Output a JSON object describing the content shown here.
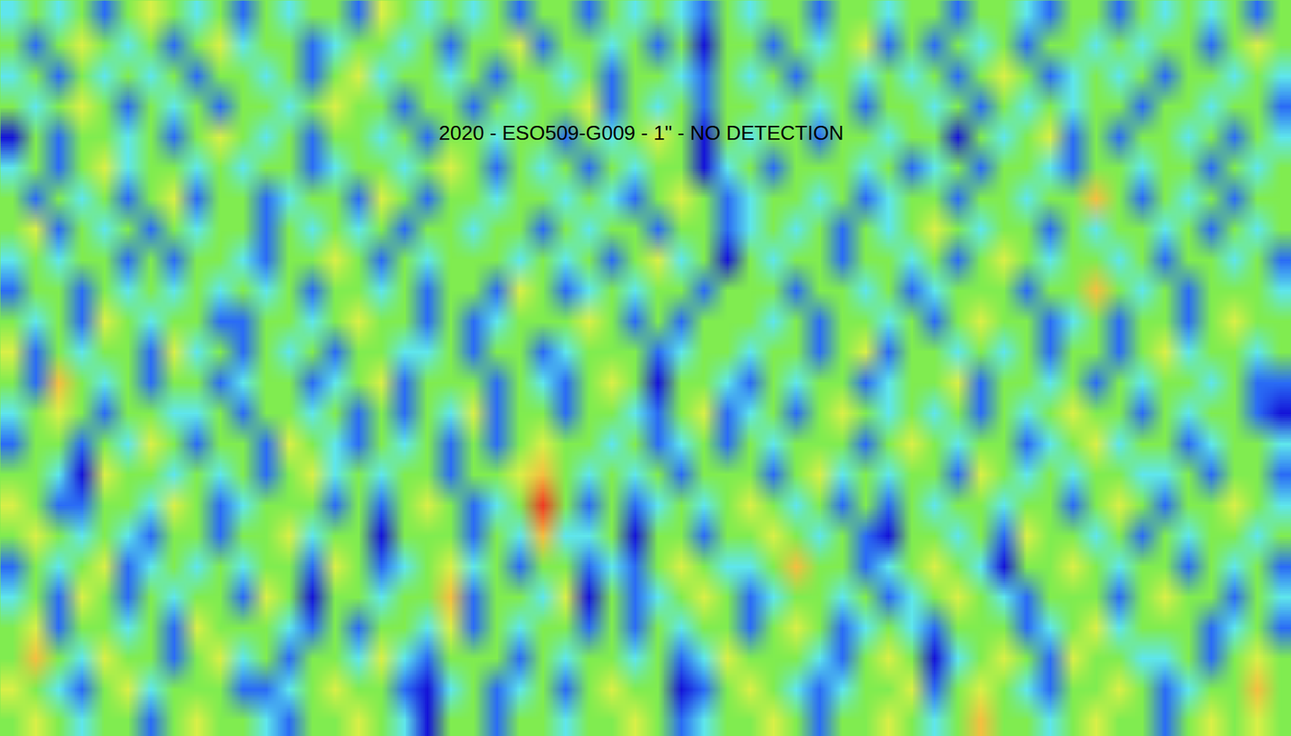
{
  "chart_data": {
    "type": "heatmap",
    "title": "2020 - ESO509-G009 - 1\" - NO DETECTION",
    "tick_labels": false,
    "value_range": [
      -4,
      4
    ],
    "cells": [
      [
        0,
        1,
        0,
        -1,
        0,
        0,
        -2,
        0,
        1,
        0,
        0,
        -1,
        -2,
        0,
        0,
        1,
        0,
        -1,
        -3,
        0,
        0,
        -2,
        0,
        0,
        -1,
        0,
        0,
        1,
        0,
        -2,
        -1,
        0,
        0,
        1,
        0,
        -2,
        0,
        0,
        1,
        0,
        -1,
        0,
        2,
        0,
        0,
        -1,
        0,
        1,
        0,
        0,
        -2,
        0,
        1,
        0,
        1,
        0
      ],
      [
        1,
        0,
        -1,
        -2,
        0,
        1,
        -1,
        0,
        0,
        0,
        -2,
        -2,
        -1,
        0,
        1,
        0,
        0,
        -2,
        -3,
        -1,
        0,
        -2,
        -1,
        0,
        -2,
        0,
        1,
        0,
        0,
        -3,
        -2,
        0,
        1,
        0,
        -1,
        -2,
        -1,
        0,
        0,
        1,
        -2,
        0,
        1,
        0,
        -1,
        -2,
        0,
        0,
        1,
        0,
        -2,
        -1,
        0,
        0,
        2,
        0
      ],
      [
        0,
        2,
        0,
        -1,
        1,
        0,
        0,
        -2,
        0,
        1,
        -1,
        0,
        -2,
        0,
        0,
        -1,
        1,
        -1,
        -2,
        0,
        0,
        0,
        -2,
        0,
        -1,
        0,
        0,
        -1,
        0,
        -2,
        -1,
        1,
        0,
        0,
        0,
        -1,
        -2,
        0,
        1,
        0,
        -3,
        -1,
        0,
        1,
        0,
        -2,
        1,
        0,
        0,
        -1,
        -1,
        0,
        -2,
        0,
        1,
        0
      ],
      [
        0,
        1,
        -2,
        0,
        0,
        -1,
        0,
        -2,
        1,
        0,
        0,
        0,
        -1,
        -2,
        0,
        -2,
        0,
        0,
        -1,
        1,
        -2,
        0,
        -1,
        0,
        0,
        -2,
        0,
        -2,
        0,
        -1,
        0,
        0,
        -2,
        0,
        1,
        0,
        -2,
        -1,
        0,
        -1,
        -2,
        0,
        0,
        0,
        -2,
        -1,
        0,
        1,
        -1,
        0,
        0,
        0,
        -2,
        -1,
        0,
        -2
      ],
      [
        -1,
        0,
        -2,
        1,
        0,
        -2,
        0,
        -1,
        0,
        0,
        -2,
        1,
        0,
        -3,
        0,
        0,
        -1,
        0,
        0,
        2,
        -2,
        0,
        0,
        -1,
        1,
        -3,
        0,
        -2,
        -1,
        0,
        1,
        0,
        -2,
        -1,
        0,
        0,
        -1,
        0,
        -2,
        -1,
        0,
        1,
        0,
        -1,
        -2,
        0,
        0,
        0,
        -2,
        0,
        1,
        0,
        0,
        -2,
        0,
        -1
      ],
      [
        -2,
        0,
        -1,
        0,
        1,
        -2,
        -1,
        0,
        -1,
        0,
        -1,
        0,
        0,
        -2,
        1,
        0,
        -2,
        -1,
        0,
        1,
        -1,
        0,
        -2,
        0,
        0,
        -2,
        -1,
        -2,
        0,
        1,
        0,
        -1,
        -1,
        0,
        2,
        0,
        0,
        -2,
        -1,
        0,
        1,
        0,
        -1,
        -3,
        0,
        0,
        1,
        0,
        -1,
        0,
        0,
        -2,
        0,
        -1,
        0,
        -2
      ],
      [
        0,
        1,
        0,
        -1,
        0,
        -1,
        -2,
        0,
        0,
        -2,
        0,
        0,
        1,
        -1,
        0,
        0,
        -3,
        0,
        0,
        0,
        -2,
        0,
        -1,
        2,
        -1,
        -1,
        0,
        -3,
        0,
        0,
        -2,
        0,
        0,
        1,
        0,
        -1,
        0,
        -2,
        -3,
        0,
        0,
        -1,
        0,
        -2,
        1,
        0,
        0,
        -1,
        0,
        -2,
        0,
        -1,
        0,
        0,
        -1,
        0
      ],
      [
        1,
        0,
        -2,
        -2,
        0,
        0,
        -1,
        1,
        0,
        -2,
        -1,
        0,
        0,
        0,
        -2,
        0,
        -2,
        0,
        1,
        0,
        -2,
        -1,
        0,
        3,
        0,
        -2,
        0,
        -2,
        -1,
        0,
        -1,
        0,
        1,
        0,
        -1,
        0,
        -2,
        0,
        -2,
        0,
        -1,
        0,
        0,
        -1,
        0,
        0,
        -2,
        0,
        1,
        0,
        -2,
        0,
        0,
        1,
        0,
        -1
      ],
      [
        0,
        0,
        -1,
        -3,
        1,
        0,
        0,
        -1,
        0,
        -1,
        0,
        -2,
        0,
        1,
        -1,
        0,
        -1,
        0,
        0,
        -2,
        0,
        0,
        1,
        2,
        0,
        -1,
        0,
        -1,
        0,
        -2,
        0,
        0,
        0,
        -2,
        0,
        1,
        -1,
        0,
        -1,
        0,
        0,
        -2,
        1,
        0,
        -1,
        0,
        -1,
        0,
        0,
        -1,
        -1,
        0,
        -2,
        0,
        0,
        -2
      ],
      [
        -2,
        0,
        0,
        -2,
        0,
        -1,
        1,
        0,
        -2,
        0,
        0,
        -2,
        1,
        0,
        -1,
        -2,
        0,
        -1,
        0,
        -2,
        0,
        -2,
        0,
        1,
        0,
        0,
        -1,
        0,
        -2,
        -1,
        0,
        -2,
        0,
        -1,
        0,
        0,
        0,
        -2,
        0,
        1,
        0,
        -1,
        0,
        0,
        -2,
        -1,
        0,
        1,
        -1,
        0,
        0,
        -2,
        -1,
        0,
        0,
        -1
      ],
      [
        -1,
        0,
        1,
        0,
        -2,
        0,
        0,
        -1,
        -1,
        0,
        -2,
        0,
        0,
        -1,
        0,
        -2,
        0,
        -2,
        0,
        -1,
        1,
        -2,
        0,
        0,
        -2,
        0,
        0,
        -1,
        -2,
        0,
        1,
        -2,
        -1,
        0,
        -2,
        0,
        1,
        0,
        -1,
        0,
        -1,
        0,
        -2,
        0,
        -1,
        0,
        1,
        0,
        0,
        -2,
        0,
        -1,
        0,
        0,
        -2,
        -3
      ],
      [
        0,
        -2,
        2,
        0,
        -1,
        0,
        -2,
        0,
        0,
        -2,
        -1,
        0,
        0,
        -2,
        -1,
        0,
        1,
        -2,
        0,
        0,
        0,
        -2,
        0,
        -1,
        -2,
        0,
        1,
        0,
        -3,
        0,
        0,
        -1,
        -2,
        0,
        -1,
        0,
        0,
        -2,
        -1,
        0,
        0,
        1,
        -2,
        0,
        0,
        -1,
        0,
        -2,
        0,
        -1,
        0,
        0,
        -1,
        0,
        -2,
        -2
      ],
      [
        1,
        -2,
        0,
        -1,
        0,
        0,
        -2,
        1,
        -1,
        0,
        -2,
        0,
        -1,
        0,
        -2,
        0,
        0,
        -1,
        -1,
        0,
        -2,
        0,
        0,
        -2,
        -1,
        0,
        0,
        0,
        -2,
        -1,
        0,
        0,
        -1,
        0,
        0,
        -2,
        0,
        1,
        -2,
        0,
        0,
        -1,
        0,
        -1,
        0,
        -2,
        0,
        0,
        -2,
        0,
        1,
        -1,
        0,
        0,
        -1,
        0
      ],
      [
        0,
        -1,
        0,
        -2,
        1,
        0,
        -1,
        0,
        0,
        -2,
        -2,
        0,
        0,
        -1,
        0,
        1,
        0,
        0,
        -2,
        0,
        -2,
        -1,
        0,
        0,
        0,
        1,
        0,
        -2,
        0,
        -2,
        0,
        0,
        0,
        -1,
        0,
        -2,
        0,
        0,
        -1,
        0,
        -2,
        0,
        1,
        0,
        0,
        -2,
        -1,
        0,
        -2,
        0,
        0,
        -2,
        0,
        1,
        0,
        0
      ],
      [
        -2,
        0,
        0,
        -2,
        0,
        -1,
        0,
        -1,
        0,
        -1,
        0,
        -1,
        0,
        -2,
        0,
        0,
        -1,
        0,
        -2,
        0,
        0,
        -2,
        1,
        0,
        -2,
        -1,
        0,
        -1,
        0,
        0,
        -2,
        0,
        0,
        0,
        -2,
        0,
        0,
        -1,
        0,
        -2,
        -1,
        0,
        0,
        0,
        -2,
        0,
        0,
        2,
        0,
        -1,
        0,
        -2,
        0,
        0,
        0,
        -1
      ],
      [
        -1,
        0,
        -1,
        0,
        0,
        -2,
        0,
        -2,
        0,
        0,
        -1,
        -2,
        0,
        0,
        1,
        0,
        -2,
        0,
        -1,
        0,
        0,
        0,
        -1,
        0,
        -1,
        0,
        -2,
        0,
        1,
        -1,
        0,
        -3,
        0,
        -1,
        0,
        0,
        -2,
        0,
        0,
        -1,
        0,
        -2,
        0,
        1,
        0,
        -1,
        0,
        0,
        -1,
        0,
        -2,
        0,
        0,
        -1,
        0,
        -2
      ],
      [
        0,
        1,
        -2,
        0,
        -1,
        0,
        -2,
        0,
        -1,
        0,
        0,
        -2,
        0,
        -1,
        0,
        -1,
        0,
        -2,
        0,
        0,
        -1,
        0,
        0,
        -2,
        0,
        -1,
        0,
        0,
        -2,
        0,
        0,
        -2,
        -1,
        0,
        -1,
        0,
        -2,
        0,
        -1,
        0,
        1,
        0,
        -1,
        0,
        0,
        -2,
        0,
        -1,
        0,
        0,
        -1,
        0,
        -2,
        0,
        -1,
        0
      ],
      [
        0,
        -2,
        0,
        -1,
        0,
        -2,
        0,
        1,
        -2,
        0,
        0,
        -2,
        -1,
        0,
        0,
        -2,
        1,
        0,
        -2,
        0,
        0,
        -1,
        0,
        0,
        -1,
        0,
        -1,
        -2,
        0,
        1,
        0,
        -2,
        -1,
        0,
        0,
        -1,
        0,
        -2,
        -1,
        0,
        0,
        -2,
        0,
        0,
        -1,
        0,
        0,
        2,
        0,
        -2,
        0,
        -1,
        0,
        -2,
        0,
        0
      ],
      [
        -1,
        0,
        -2,
        0,
        1,
        -1,
        0,
        0,
        -1,
        0,
        -1,
        0,
        0,
        -2,
        -1,
        0,
        0,
        -1,
        0,
        1,
        0,
        -2,
        0,
        -1,
        0,
        -2,
        0,
        -1,
        0,
        0,
        -3,
        -1,
        0,
        -2,
        0,
        0,
        0,
        -1,
        0,
        -2,
        -1,
        0,
        -2,
        0,
        0,
        -1,
        -2,
        0,
        0,
        -1,
        0,
        0,
        -2,
        0,
        -1,
        0
      ],
      [
        -3,
        0,
        -2,
        0,
        0,
        -1,
        0,
        -2,
        0,
        1,
        0,
        -1,
        0,
        -2,
        0,
        0,
        -1,
        0,
        -2,
        0,
        0,
        -1,
        0,
        0,
        -2,
        0,
        -1,
        0,
        1,
        0,
        -3,
        0,
        -1,
        0,
        0,
        -2,
        0,
        0,
        -1,
        0,
        0,
        -3,
        0,
        -1,
        0,
        1,
        -2,
        0,
        -2,
        0,
        0,
        -1,
        0,
        -2,
        0,
        -1
      ],
      [
        0,
        -1,
        0,
        1,
        0,
        -2,
        0,
        -1,
        0,
        -2,
        0,
        0,
        -1,
        0,
        1,
        0,
        0,
        -2,
        0,
        0,
        -2,
        0,
        -1,
        0,
        0,
        1,
        -2,
        0,
        -1,
        0,
        -2,
        0,
        0,
        -1,
        0,
        -1,
        0,
        -2,
        0,
        0,
        -1,
        0,
        -2,
        0,
        -1,
        0,
        -1,
        0,
        0,
        -2,
        0,
        0,
        -1,
        0,
        0,
        -2
      ],
      [
        -1,
        0,
        -2,
        0,
        -1,
        0,
        -1,
        0,
        -2,
        0,
        0,
        -1,
        0,
        -2,
        0,
        1,
        -1,
        0,
        0,
        -1,
        0,
        -2,
        0,
        0,
        -1,
        0,
        -2,
        0,
        0,
        -1,
        -2,
        0,
        -1,
        0,
        -2,
        0,
        0,
        -1,
        0,
        -1,
        0,
        -2,
        0,
        1,
        0,
        -2,
        -1,
        0,
        -1,
        0,
        -2,
        0,
        0,
        -1,
        0,
        -1
      ],
      [
        0,
        -2,
        0,
        1,
        0,
        -1,
        0,
        -2,
        0,
        1,
        -1,
        0,
        0,
        -2,
        -1,
        0,
        0,
        -1,
        0,
        -2,
        0,
        0,
        1,
        -2,
        0,
        0,
        -1,
        0,
        -2,
        0,
        -3,
        0,
        0,
        -2,
        0,
        -1,
        0,
        1,
        -2,
        0,
        -2,
        0,
        -1,
        0,
        -2,
        0,
        0,
        -1,
        0,
        -1,
        0,
        0,
        -2,
        0,
        1,
        0
      ],
      [
        -1,
        0,
        -1,
        0,
        -2,
        0,
        1,
        0,
        -1,
        0,
        -2,
        0,
        -1,
        0,
        0,
        -2,
        1,
        0,
        -1,
        0,
        -1,
        0,
        -2,
        0,
        0,
        -2,
        0,
        -1,
        0,
        -1,
        -2,
        0,
        -1,
        0,
        0,
        -2,
        0,
        0,
        -1,
        0,
        0,
        -2,
        0,
        0,
        -1,
        -2,
        0,
        0,
        -2,
        0,
        -1,
        0,
        -1,
        0,
        -2,
        0
      ]
    ]
  }
}
